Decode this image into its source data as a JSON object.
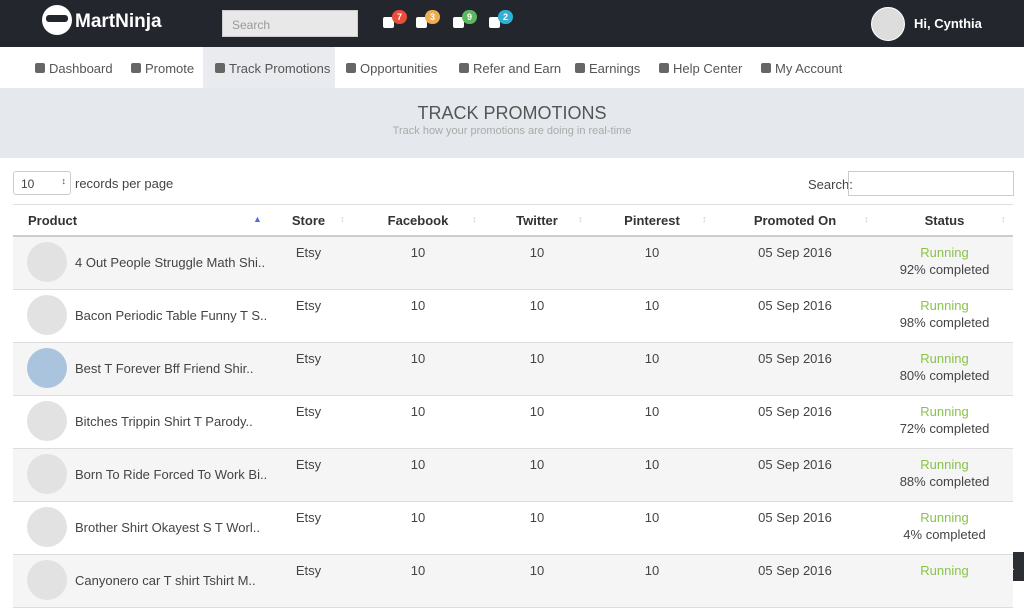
{
  "header": {
    "brand": "MartNinja",
    "search_placeholder": "Search",
    "badges": [
      "7",
      "3",
      "9",
      "2"
    ],
    "greeting": "Hi, Cynthia"
  },
  "nav": [
    "Dashboard",
    "Promote",
    "Track Promotions",
    "Opportunities",
    "Refer and Earn",
    "Earnings",
    "Help Center",
    "My Account"
  ],
  "page": {
    "title": "TRACK PROMOTIONS",
    "subtitle": "Track how your promotions are doing in real-time"
  },
  "controls": {
    "page_size": "10",
    "records_label": "records per page",
    "search_label": "Search:"
  },
  "table": {
    "columns": [
      "Product",
      "Store",
      "Facebook",
      "Twitter",
      "Pinterest",
      "Promoted On",
      "Status"
    ],
    "rows": [
      [
        "4 Out People Struggle Math Shi..",
        "Etsy",
        "10",
        "10",
        "10",
        "05 Sep 2016",
        "Running",
        "92% completed"
      ],
      [
        "Bacon Periodic Table Funny T S..",
        "Etsy",
        "10",
        "10",
        "10",
        "05 Sep 2016",
        "Running",
        "98% completed"
      ],
      [
        "Best T Forever Bff Friend Shir..",
        "Etsy",
        "10",
        "10",
        "10",
        "05 Sep 2016",
        "Running",
        "80% completed"
      ],
      [
        "Bitches Trippin Shirt T Parody..",
        "Etsy",
        "10",
        "10",
        "10",
        "05 Sep 2016",
        "Running",
        "72% completed"
      ],
      [
        "Born To Ride Forced To Work Bi..",
        "Etsy",
        "10",
        "10",
        "10",
        "05 Sep 2016",
        "Running",
        "88% completed"
      ],
      [
        "Brother Shirt Okayest S T Worl..",
        "Etsy",
        "10",
        "10",
        "10",
        "05 Sep 2016",
        "Running",
        "4% completed"
      ],
      [
        "Canyonero car T shirt Tshirt M..",
        "Etsy",
        "10",
        "10",
        "10",
        "05 Sep 2016",
        "Running"
      ]
    ]
  }
}
